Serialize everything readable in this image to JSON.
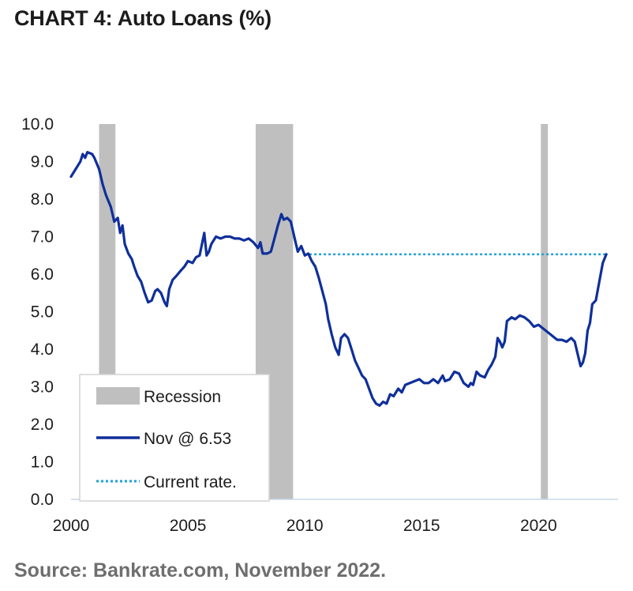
{
  "title": "CHART 4: Auto Loans (%)",
  "source": "Source: Bankrate.com,  November 2022.",
  "colors": {
    "series": "#0f2f9a",
    "current_rate": "#1ea0d8",
    "recession": "#bfbfbf",
    "axis": "#c9d7e6"
  },
  "chart_data": {
    "type": "line",
    "title": "CHART 4: Auto Loans (%)",
    "xlabel": "",
    "ylabel": "",
    "xlim": [
      2000,
      2023.4
    ],
    "ylim": [
      0,
      10
    ],
    "x_ticks": [
      "2000",
      "2005",
      "2010",
      "2015",
      "2020"
    ],
    "y_ticks": [
      "0.0",
      "1.0",
      "2.0",
      "3.0",
      "4.0",
      "5.0",
      "6.0",
      "7.0",
      "8.0",
      "9.0",
      "10.0"
    ],
    "grid": false,
    "legend_position": "bottom-left",
    "legend": [
      {
        "label": "Recession",
        "kind": "bar"
      },
      {
        "label": "Nov @ 6.53",
        "kind": "line"
      },
      {
        "label": "Current rate.",
        "kind": "dotted"
      }
    ],
    "recessions": [
      {
        "start": 2001.2,
        "end": 2001.9
      },
      {
        "start": 2007.9,
        "end": 2009.5
      },
      {
        "start": 2020.1,
        "end": 2020.4
      }
    ],
    "current_rate": {
      "value": 6.53,
      "start": 2010.2,
      "end": 2022.9
    },
    "series": [
      {
        "name": "Nov @ 6.53",
        "points": [
          [
            2000.0,
            8.6
          ],
          [
            2000.2,
            8.8
          ],
          [
            2000.4,
            9.0
          ],
          [
            2000.5,
            9.2
          ],
          [
            2000.6,
            9.1
          ],
          [
            2000.7,
            9.25
          ],
          [
            2000.9,
            9.2
          ],
          [
            2001.0,
            9.1
          ],
          [
            2001.2,
            8.8
          ],
          [
            2001.35,
            8.4
          ],
          [
            2001.5,
            8.1
          ],
          [
            2001.7,
            7.8
          ],
          [
            2001.85,
            7.4
          ],
          [
            2002.0,
            7.5
          ],
          [
            2002.1,
            7.1
          ],
          [
            2002.2,
            7.3
          ],
          [
            2002.3,
            6.8
          ],
          [
            2002.45,
            6.55
          ],
          [
            2002.6,
            6.4
          ],
          [
            2002.7,
            6.2
          ],
          [
            2002.85,
            5.95
          ],
          [
            2003.0,
            5.8
          ],
          [
            2003.15,
            5.5
          ],
          [
            2003.3,
            5.25
          ],
          [
            2003.45,
            5.3
          ],
          [
            2003.6,
            5.55
          ],
          [
            2003.7,
            5.6
          ],
          [
            2003.85,
            5.5
          ],
          [
            2004.0,
            5.25
          ],
          [
            2004.1,
            5.15
          ],
          [
            2004.2,
            5.6
          ],
          [
            2004.35,
            5.85
          ],
          [
            2004.5,
            5.95
          ],
          [
            2004.7,
            6.1
          ],
          [
            2004.85,
            6.2
          ],
          [
            2005.0,
            6.35
          ],
          [
            2005.2,
            6.3
          ],
          [
            2005.35,
            6.45
          ],
          [
            2005.5,
            6.5
          ],
          [
            2005.7,
            7.1
          ],
          [
            2005.8,
            6.5
          ],
          [
            2005.9,
            6.6
          ],
          [
            2006.0,
            6.8
          ],
          [
            2006.2,
            7.0
          ],
          [
            2006.4,
            6.95
          ],
          [
            2006.6,
            7.0
          ],
          [
            2006.8,
            7.0
          ],
          [
            2007.0,
            6.95
          ],
          [
            2007.2,
            6.95
          ],
          [
            2007.4,
            6.9
          ],
          [
            2007.6,
            6.95
          ],
          [
            2007.8,
            6.85
          ],
          [
            2008.0,
            6.7
          ],
          [
            2008.1,
            6.85
          ],
          [
            2008.2,
            6.55
          ],
          [
            2008.4,
            6.55
          ],
          [
            2008.55,
            6.6
          ],
          [
            2008.7,
            6.95
          ],
          [
            2008.85,
            7.3
          ],
          [
            2009.0,
            7.6
          ],
          [
            2009.1,
            7.45
          ],
          [
            2009.25,
            7.5
          ],
          [
            2009.4,
            7.4
          ],
          [
            2009.55,
            7.0
          ],
          [
            2009.7,
            6.6
          ],
          [
            2009.85,
            6.75
          ],
          [
            2010.0,
            6.5
          ],
          [
            2010.15,
            6.55
          ],
          [
            2010.3,
            6.35
          ],
          [
            2010.45,
            6.2
          ],
          [
            2010.6,
            5.9
          ],
          [
            2010.75,
            5.55
          ],
          [
            2010.9,
            5.2
          ],
          [
            2011.0,
            4.8
          ],
          [
            2011.15,
            4.4
          ],
          [
            2011.3,
            4.05
          ],
          [
            2011.45,
            3.85
          ],
          [
            2011.55,
            4.3
          ],
          [
            2011.7,
            4.4
          ],
          [
            2011.85,
            4.3
          ],
          [
            2012.0,
            4.0
          ],
          [
            2012.15,
            3.7
          ],
          [
            2012.3,
            3.5
          ],
          [
            2012.45,
            3.3
          ],
          [
            2012.6,
            3.2
          ],
          [
            2012.75,
            2.95
          ],
          [
            2012.9,
            2.7
          ],
          [
            2013.05,
            2.55
          ],
          [
            2013.2,
            2.5
          ],
          [
            2013.35,
            2.6
          ],
          [
            2013.5,
            2.55
          ],
          [
            2013.65,
            2.8
          ],
          [
            2013.8,
            2.75
          ],
          [
            2014.0,
            2.95
          ],
          [
            2014.15,
            2.85
          ],
          [
            2014.3,
            3.05
          ],
          [
            2014.5,
            3.1
          ],
          [
            2014.7,
            3.15
          ],
          [
            2014.9,
            3.2
          ],
          [
            2015.1,
            3.1
          ],
          [
            2015.3,
            3.1
          ],
          [
            2015.5,
            3.2
          ],
          [
            2015.7,
            3.1
          ],
          [
            2015.9,
            3.3
          ],
          [
            2016.0,
            3.15
          ],
          [
            2016.2,
            3.2
          ],
          [
            2016.4,
            3.4
          ],
          [
            2016.6,
            3.35
          ],
          [
            2016.8,
            3.1
          ],
          [
            2017.0,
            3.0
          ],
          [
            2017.1,
            3.1
          ],
          [
            2017.2,
            3.05
          ],
          [
            2017.35,
            3.4
          ],
          [
            2017.5,
            3.3
          ],
          [
            2017.7,
            3.25
          ],
          [
            2017.85,
            3.45
          ],
          [
            2018.0,
            3.6
          ],
          [
            2018.15,
            3.8
          ],
          [
            2018.25,
            4.3
          ],
          [
            2018.35,
            4.2
          ],
          [
            2018.45,
            4.05
          ],
          [
            2018.55,
            4.2
          ],
          [
            2018.65,
            4.75
          ],
          [
            2018.75,
            4.8
          ],
          [
            2018.85,
            4.85
          ],
          [
            2019.0,
            4.8
          ],
          [
            2019.2,
            4.9
          ],
          [
            2019.4,
            4.85
          ],
          [
            2019.6,
            4.75
          ],
          [
            2019.8,
            4.6
          ],
          [
            2020.0,
            4.65
          ],
          [
            2020.2,
            4.55
          ],
          [
            2020.4,
            4.45
          ],
          [
            2020.6,
            4.35
          ],
          [
            2020.8,
            4.25
          ],
          [
            2021.0,
            4.25
          ],
          [
            2021.2,
            4.2
          ],
          [
            2021.4,
            4.3
          ],
          [
            2021.55,
            4.2
          ],
          [
            2021.7,
            3.8
          ],
          [
            2021.8,
            3.55
          ],
          [
            2021.9,
            3.65
          ],
          [
            2022.0,
            3.9
          ],
          [
            2022.1,
            4.5
          ],
          [
            2022.2,
            4.7
          ],
          [
            2022.3,
            5.2
          ],
          [
            2022.45,
            5.3
          ],
          [
            2022.6,
            5.8
          ],
          [
            2022.75,
            6.3
          ],
          [
            2022.9,
            6.53
          ]
        ]
      }
    ]
  }
}
